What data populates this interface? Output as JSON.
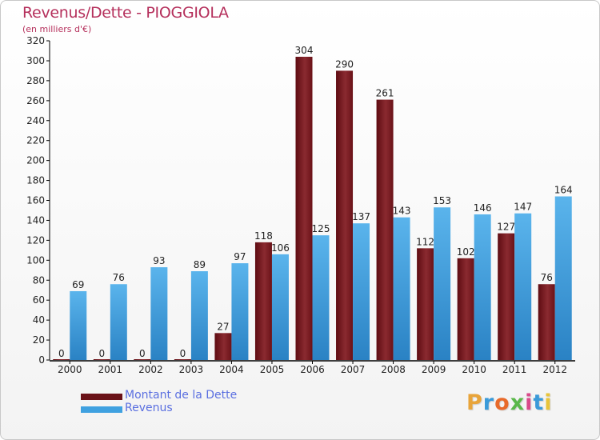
{
  "title": "Revenus/Dette - PIOGGIOLA",
  "subtitle": "(en milliers d'€)",
  "logo": {
    "text": "Proxiti",
    "letter_colors": [
      "#e8a43a",
      "#3a9ad9",
      "#e86a2a",
      "#5ab84a",
      "#d94a8a",
      "#3a9ad9",
      "#e8c43a"
    ]
  },
  "chart_data": {
    "type": "bar",
    "categories": [
      "2000",
      "2001",
      "2002",
      "2003",
      "2004",
      "2005",
      "2006",
      "2007",
      "2008",
      "2009",
      "2010",
      "2011",
      "2012"
    ],
    "series": [
      {
        "name": "Montant de la Dette",
        "color": "#7a1a22",
        "values": [
          0,
          0,
          0,
          0,
          27,
          118,
          304,
          290,
          261,
          112,
          102,
          127,
          76
        ]
      },
      {
        "name": "Revenus",
        "color": "#3fa1e0",
        "values": [
          69,
          76,
          93,
          89,
          97,
          106,
          125,
          137,
          143,
          153,
          146,
          147,
          164
        ]
      }
    ],
    "ylim": [
      0,
      320
    ],
    "yticks": [
      0,
      20,
      40,
      60,
      80,
      100,
      120,
      140,
      160,
      180,
      200,
      220,
      240,
      260,
      280,
      300,
      320
    ],
    "grid": false,
    "legend": "bottom-left"
  }
}
